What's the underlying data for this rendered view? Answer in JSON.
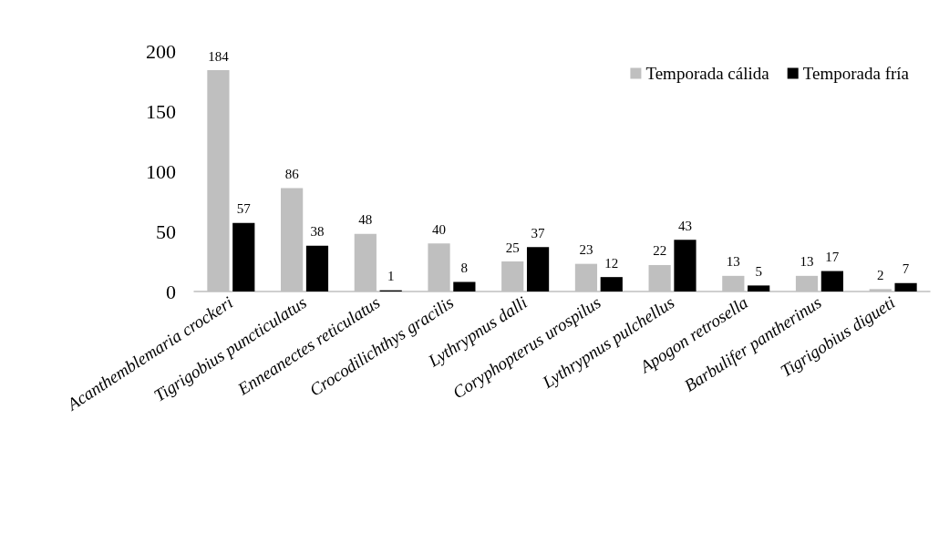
{
  "chart_data": {
    "type": "bar",
    "categories": [
      "Acanthemblemaria crockeri",
      "Tigrigobius puncticulatus",
      "Enneanectes reticulatus",
      "Crocodilichthys gracilis",
      "Lythrypnus dalli",
      "Coryphopterus urospilus",
      "Lythrypnus pulchellus",
      "Apogon retrosella",
      "Barbulifer pantherinus",
      "Tigrigobius digueti"
    ],
    "series": [
      {
        "name": "Temporada cálida",
        "color": "#bfbfbf",
        "values": [
          184,
          86,
          48,
          40,
          25,
          23,
          22,
          13,
          13,
          2
        ]
      },
      {
        "name": "Temporada fría",
        "color": "#000000",
        "values": [
          57,
          38,
          1,
          8,
          37,
          12,
          43,
          5,
          17,
          7
        ]
      }
    ],
    "ylim": [
      0,
      200
    ],
    "yticks": [
      0,
      50,
      100,
      150,
      200
    ],
    "grid": false,
    "legend": "top right",
    "data_labels": true
  }
}
